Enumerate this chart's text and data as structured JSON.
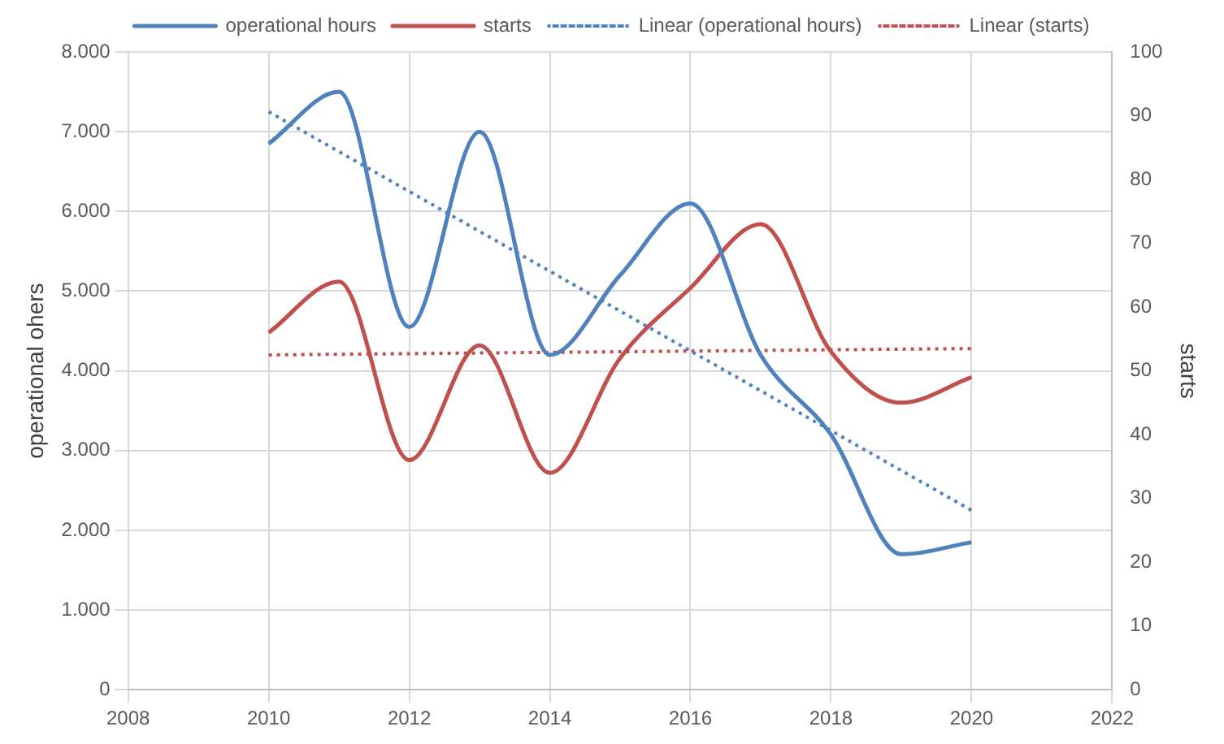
{
  "chart_data": {
    "type": "line",
    "ylabel": "operational ohers",
    "y2label": "starts",
    "x": [
      2010,
      2011,
      2012,
      2013,
      2014,
      2015,
      2016,
      2017,
      2018,
      2019,
      2020
    ],
    "series": [
      {
        "name": "operational hours",
        "color": "#4f81bd",
        "values": [
          6850,
          7500,
          4550,
          7000,
          4200,
          5200,
          6100,
          4200,
          3200,
          1700,
          1850
        ]
      },
      {
        "name": "starts",
        "color": "#c0504d",
        "axis": "y2",
        "values": [
          56,
          64,
          36,
          54,
          34,
          52,
          63,
          73,
          53,
          45,
          49
        ]
      },
      {
        "name": "Linear (operational hours)",
        "color": "#4f81bd",
        "line_style": "dotted",
        "values": [
          7250,
          6750,
          6250,
          5750,
          5250,
          4750,
          4250,
          3750,
          3250,
          2750,
          2250
        ]
      },
      {
        "name": "Linear (starts)",
        "color": "#c0504d",
        "axis": "y2",
        "line_style": "dotted",
        "values": [
          52.5,
          52.6,
          52.7,
          52.8,
          52.9,
          53,
          53.1,
          53.2,
          53.3,
          53.4,
          53.5
        ]
      }
    ],
    "xlim": [
      2008,
      2022
    ],
    "xticks": [
      2008,
      2010,
      2012,
      2014,
      2016,
      2018,
      2020,
      2022
    ],
    "ylim": [
      0,
      8000
    ],
    "yticks": [
      {
        "value": 0,
        "label": "0"
      },
      {
        "value": 1000,
        "label": "1.000"
      },
      {
        "value": 2000,
        "label": "2.000"
      },
      {
        "value": 3000,
        "label": "3.000"
      },
      {
        "value": 4000,
        "label": "4.000"
      },
      {
        "value": 5000,
        "label": "5.000"
      },
      {
        "value": 6000,
        "label": "6.000"
      },
      {
        "value": 7000,
        "label": "7.000"
      },
      {
        "value": 8000,
        "label": "8.000"
      }
    ],
    "y2lim": [
      0,
      100
    ],
    "y2ticks": [
      0,
      10,
      20,
      30,
      40,
      50,
      60,
      70,
      80,
      90,
      100
    ],
    "grid": true,
    "legend": "top",
    "marker": "none",
    "line_style": "solid"
  }
}
